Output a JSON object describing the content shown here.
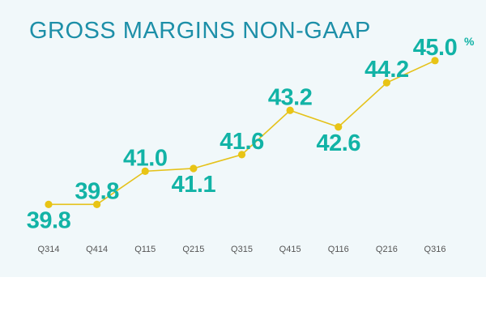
{
  "title": "GROSS MARGINS NON-GAAP",
  "chart_data": {
    "type": "line",
    "title": "GROSS MARGINS NON-GAAP",
    "categories": [
      "Q314",
      "Q414",
      "Q115",
      "Q215",
      "Q315",
      "Q415",
      "Q116",
      "Q216",
      "Q316"
    ],
    "values": [
      39.8,
      39.8,
      41.0,
      41.1,
      41.6,
      43.2,
      42.6,
      44.2,
      45.0
    ],
    "labels": [
      "39.8",
      "39.8",
      "41.0",
      "41.1",
      "41.6",
      "43.2",
      "42.6",
      "44.2",
      "45.0"
    ],
    "last_label_suffix": "%",
    "xlabel": "",
    "ylabel": "",
    "ylim": [
      39.4,
      45.2
    ],
    "grid": false,
    "legend": "none",
    "colors": {
      "line": "#e5c21a",
      "marker": "#e8c415",
      "label": "#12b3a6",
      "title": "#1d8fa8",
      "tick": "#555555",
      "panel": "#f1f8fa"
    }
  }
}
